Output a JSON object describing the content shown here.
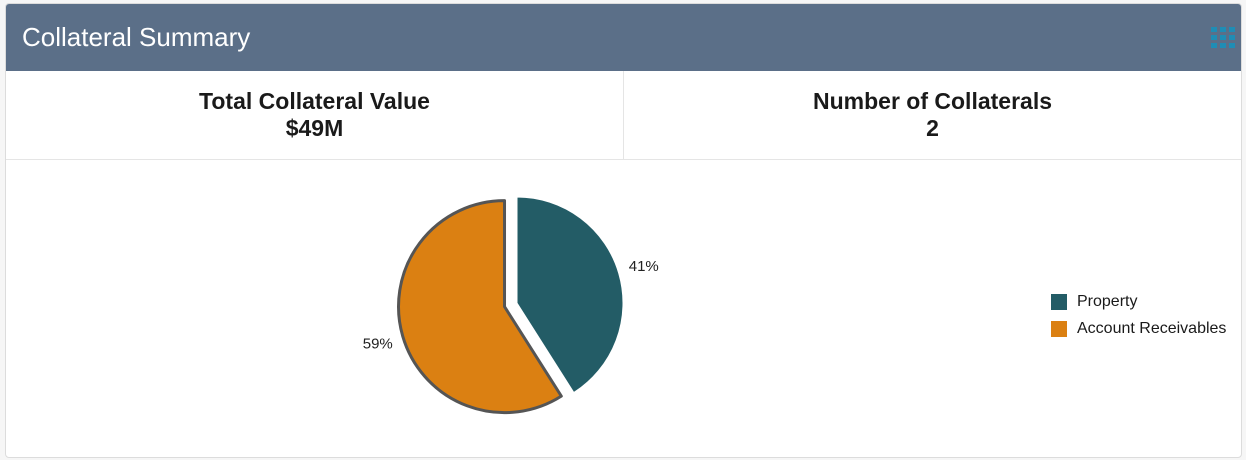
{
  "header": {
    "title": "Collateral Summary",
    "menu_icon": "grid-menu-icon"
  },
  "summary": {
    "total": {
      "label": "Total Collateral Value",
      "value": "$49M"
    },
    "count": {
      "label": "Number of Collaterals",
      "value": "2"
    }
  },
  "colors": {
    "header_bg": "#5b6f88",
    "icon": "#1f8db5"
  },
  "chart_data": {
    "type": "pie",
    "title": "",
    "categories": [
      "Property",
      "Account Receivables"
    ],
    "values": [
      41,
      59
    ],
    "labels": [
      "41%",
      "59%"
    ],
    "colors": [
      "#235c66",
      "#db8012"
    ],
    "legend_position": "right",
    "exploded_slice": "Account Receivables"
  }
}
